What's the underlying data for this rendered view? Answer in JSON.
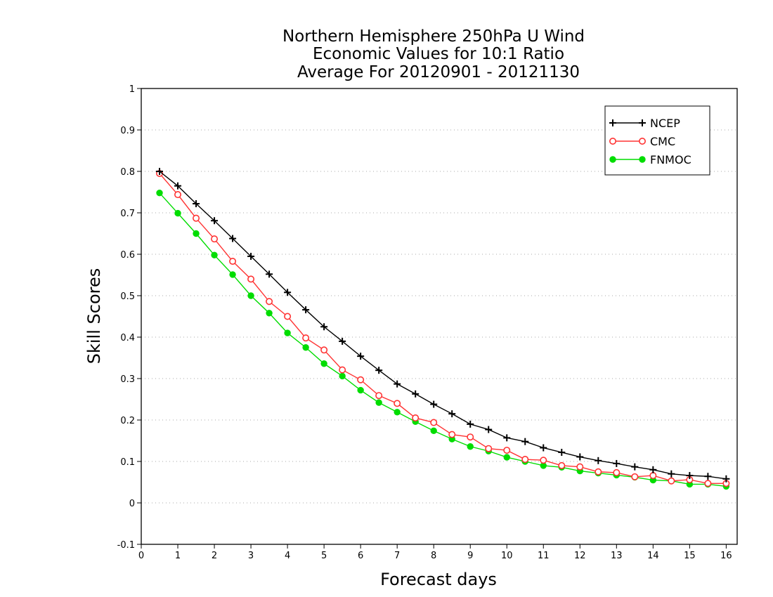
{
  "chart_data": {
    "type": "line",
    "title": [
      "Northern Hemisphere 250hPa U Wind",
      "Economic Values for 10:1 Ratio",
      "Average For 20120901 - 20121130"
    ],
    "xlabel": "Forecast days",
    "ylabel": "Skill Scores",
    "xlim": [
      0,
      16.3
    ],
    "ylim": [
      -0.1,
      1.0
    ],
    "xticks": [
      0,
      1,
      2,
      3,
      4,
      5,
      6,
      7,
      8,
      9,
      10,
      11,
      12,
      13,
      14,
      15,
      16
    ],
    "yticks": [
      -0.1,
      0,
      0.1,
      0.2,
      0.3,
      0.4,
      0.5,
      0.6,
      0.7,
      0.8,
      0.9,
      1
    ],
    "ytick_labels": [
      "-0.1",
      "0",
      "0.1",
      "0.2",
      "0.3",
      "0.4",
      "0.5",
      "0.6",
      "0.7",
      "0.8",
      "0.9",
      "1"
    ],
    "grid": "horizontal-dotted",
    "legend_position": "top-right",
    "x": [
      0.5,
      1.0,
      1.5,
      2.0,
      2.5,
      3.0,
      3.5,
      4.0,
      4.5,
      5.0,
      5.5,
      6.0,
      6.5,
      7.0,
      7.5,
      8.0,
      8.5,
      9.0,
      9.5,
      10.0,
      10.5,
      11.0,
      11.5,
      12.0,
      12.5,
      13.0,
      13.5,
      14.0,
      14.5,
      15.0,
      15.5,
      16.0
    ],
    "series": [
      {
        "name": "NCEP",
        "color": "#000000",
        "marker": "plus",
        "values": [
          0.8,
          0.765,
          0.722,
          0.681,
          0.638,
          0.595,
          0.552,
          0.508,
          0.466,
          0.425,
          0.39,
          0.354,
          0.32,
          0.287,
          0.263,
          0.238,
          0.215,
          0.19,
          0.177,
          0.157,
          0.148,
          0.133,
          0.122,
          0.111,
          0.102,
          0.095,
          0.087,
          0.08,
          0.07,
          0.066,
          0.064,
          0.058
        ]
      },
      {
        "name": "CMC",
        "color": "#ff3333",
        "marker": "open-circle",
        "values": [
          0.795,
          0.744,
          0.687,
          0.637,
          0.583,
          0.54,
          0.486,
          0.45,
          0.398,
          0.369,
          0.321,
          0.297,
          0.259,
          0.24,
          0.205,
          0.194,
          0.165,
          0.159,
          0.131,
          0.127,
          0.105,
          0.103,
          0.09,
          0.087,
          0.075,
          0.073,
          0.063,
          0.066,
          0.053,
          0.056,
          0.047,
          0.047
        ]
      },
      {
        "name": "FNMOC",
        "color": "#00dd00",
        "marker": "filled-circle",
        "values": [
          0.748,
          0.699,
          0.65,
          0.598,
          0.551,
          0.5,
          0.458,
          0.41,
          0.375,
          0.336,
          0.306,
          0.272,
          0.242,
          0.219,
          0.196,
          0.174,
          0.154,
          0.136,
          0.125,
          0.11,
          0.1,
          0.09,
          0.086,
          0.077,
          0.072,
          0.067,
          0.062,
          0.055,
          0.053,
          0.045,
          0.045,
          0.04
        ]
      }
    ]
  }
}
